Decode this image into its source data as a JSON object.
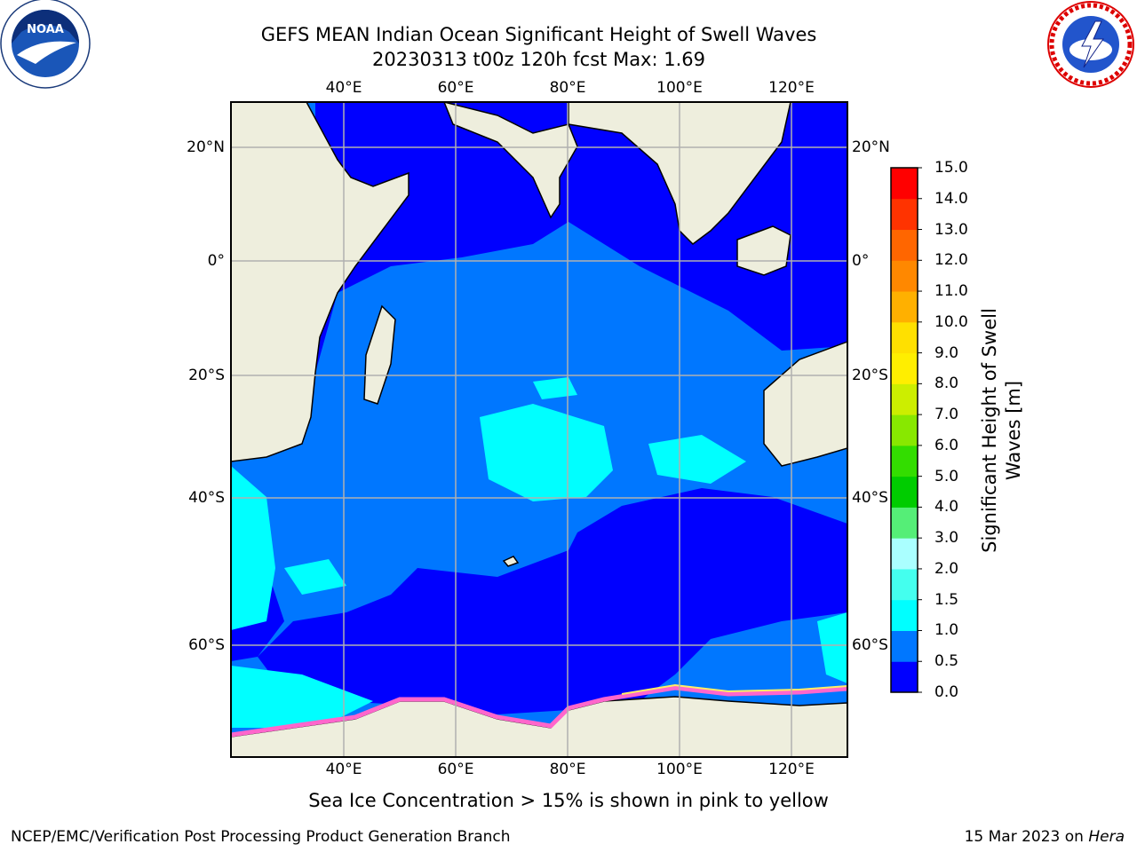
{
  "title": {
    "line1": "GEFS MEAN Indian Ocean Significant Height of Swell Waves",
    "line2": "20230313 t00z 120h fcst   Max: 1.69"
  },
  "logos": {
    "left": "noaa-logo",
    "right": "national-weather-service-logo"
  },
  "map": {
    "lon_ticks": [
      "40°E",
      "60°E",
      "80°E",
      "100°E",
      "120°E"
    ],
    "lat_ticks_left": [
      "20°N",
      "0°",
      "20°S",
      "40°S",
      "60°S"
    ],
    "lat_ticks_right": [
      "20°N",
      "0°",
      "20°S",
      "40°S",
      "60°S"
    ],
    "colors": {
      "land": "#eeeedd",
      "grid": "#b0b0b0",
      "frame": "#000000"
    }
  },
  "colorbar": {
    "title": "Significant Height of Swell Waves [m]",
    "labels": [
      "15.0",
      "14.0",
      "13.0",
      "12.0",
      "11.0",
      "10.0",
      "9.0",
      "8.0",
      "7.0",
      "6.0",
      "5.0",
      "4.0",
      "3.0",
      "2.0",
      "1.5",
      "1.0",
      "0.5",
      "0.0"
    ],
    "colors_bottom_to_top": [
      "#0000ff",
      "#0077ff",
      "#00ffff",
      "#44ffee",
      "#aaffff",
      "#55ee77",
      "#00cc00",
      "#33dd00",
      "#88e800",
      "#ccee00",
      "#ffee00",
      "#ffe000",
      "#ffb000",
      "#ff8800",
      "#ff6600",
      "#ff3300",
      "#ff0000"
    ]
  },
  "note": "Sea Ice Concentration > 15% is shown in pink to yellow",
  "footer": {
    "left": "NCEP/EMC/Verification Post Processing Product Generation Branch",
    "date": "15 Mar 2023 on ",
    "host": "Hera"
  }
}
